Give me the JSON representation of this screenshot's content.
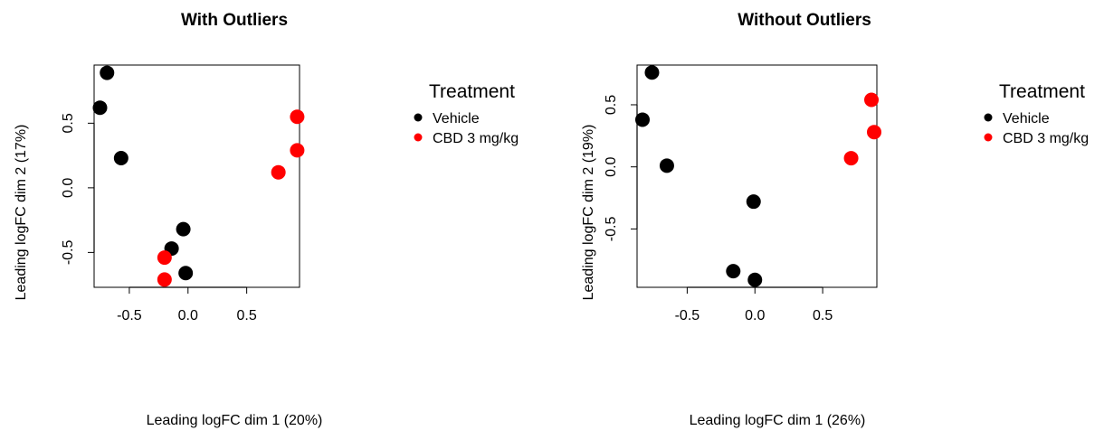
{
  "chart_data": [
    {
      "type": "scatter",
      "title": "With Outliers",
      "xlabel": "Leading logFC dim 1 (20%)",
      "ylabel": "Leading logFC dim 2 (17%)",
      "xlim": [
        -0.8,
        0.95
      ],
      "ylim": [
        -0.77,
        0.95
      ],
      "xticks": [
        -0.5,
        0.0,
        0.5
      ],
      "xtick_labels": [
        "-0.5",
        "0.0",
        "0.5"
      ],
      "yticks": [
        -0.5,
        0.0,
        0.5
      ],
      "ytick_labels": [
        "-0.5",
        "0.0",
        "0.5"
      ],
      "grid": false,
      "legend": {
        "title": "Treatment",
        "placement": "right-outside",
        "entries": [
          {
            "label": "Vehicle",
            "color": "#000000"
          },
          {
            "label": "CBD 3 mg/kg",
            "color": "#ff0000"
          }
        ]
      },
      "series": [
        {
          "legend_index": 0,
          "color": "#000000",
          "points": [
            {
              "x": -0.75,
              "y": 0.62
            },
            {
              "x": -0.69,
              "y": 0.89
            },
            {
              "x": -0.57,
              "y": 0.23
            },
            {
              "x": -0.04,
              "y": -0.32
            },
            {
              "x": -0.14,
              "y": -0.47
            },
            {
              "x": -0.02,
              "y": -0.66
            }
          ]
        },
        {
          "legend_index": 1,
          "color": "#ff0000",
          "points": [
            {
              "x": 0.93,
              "y": 0.55
            },
            {
              "x": 0.93,
              "y": 0.29
            },
            {
              "x": 0.77,
              "y": 0.12
            },
            {
              "x": -0.2,
              "y": -0.54
            },
            {
              "x": -0.2,
              "y": -0.71
            }
          ]
        }
      ]
    },
    {
      "type": "scatter",
      "title": "Without Outliers",
      "xlabel": "Leading logFC dim 1 (26%)",
      "ylabel": "Leading logFC dim 2 (19%)",
      "xlim": [
        -0.87,
        0.9
      ],
      "ylim": [
        -0.97,
        0.82
      ],
      "xticks": [
        -0.5,
        0.0,
        0.5
      ],
      "xtick_labels": [
        "-0.5",
        "0.0",
        "0.5"
      ],
      "yticks": [
        -0.5,
        0.0,
        0.5
      ],
      "ytick_labels": [
        "-0.5",
        "0.0",
        "0.5"
      ],
      "grid": false,
      "legend": {
        "title": "Treatment",
        "placement": "right-outside",
        "entries": [
          {
            "label": "Vehicle",
            "color": "#000000"
          },
          {
            "label": "CBD 3 mg/kg",
            "color": "#ff0000"
          }
        ]
      },
      "series": [
        {
          "legend_index": 0,
          "color": "#000000",
          "points": [
            {
              "x": -0.76,
              "y": 0.76
            },
            {
              "x": -0.83,
              "y": 0.38
            },
            {
              "x": -0.65,
              "y": 0.01
            },
            {
              "x": -0.01,
              "y": -0.28
            },
            {
              "x": -0.16,
              "y": -0.84
            },
            {
              "x": 0.0,
              "y": -0.91
            }
          ]
        },
        {
          "legend_index": 1,
          "color": "#ff0000",
          "points": [
            {
              "x": 0.86,
              "y": 0.54
            },
            {
              "x": 0.88,
              "y": 0.28
            },
            {
              "x": 0.71,
              "y": 0.07
            }
          ]
        }
      ]
    }
  ]
}
